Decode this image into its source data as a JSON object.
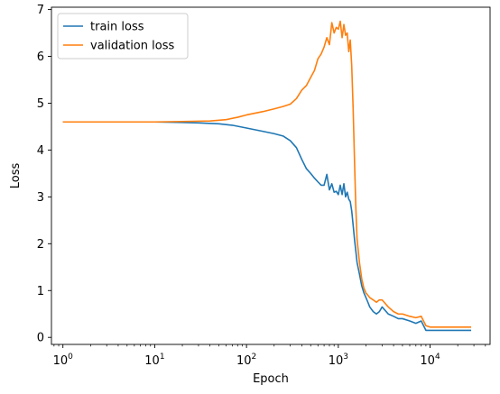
{
  "chart_data": {
    "type": "line",
    "xlabel": "Epoch",
    "ylabel": "Loss",
    "xscale": "log",
    "xlim": [
      0.75,
      45000
    ],
    "ylim": [
      -0.15,
      7.05
    ],
    "grid": false,
    "legend_position": "top-left",
    "x_ticks": [
      {
        "value": 1,
        "base": "10",
        "exp": "0"
      },
      {
        "value": 10,
        "base": "10",
        "exp": "1"
      },
      {
        "value": 100,
        "base": "10",
        "exp": "2"
      },
      {
        "value": 1000,
        "base": "10",
        "exp": "3"
      },
      {
        "value": 10000,
        "base": "10",
        "exp": "4"
      }
    ],
    "y_ticks": [
      0,
      1,
      2,
      3,
      4,
      5,
      6,
      7
    ],
    "series": [
      {
        "name": "train loss",
        "color": "#1f77b4",
        "x": [
          1,
          2,
          5,
          10,
          20,
          30,
          50,
          70,
          100,
          150,
          200,
          250,
          300,
          350,
          400,
          450,
          500,
          550,
          600,
          650,
          700,
          750,
          800,
          850,
          900,
          950,
          1000,
          1050,
          1100,
          1150,
          1200,
          1250,
          1300,
          1350,
          1400,
          1450,
          1500,
          1550,
          1600,
          1700,
          1800,
          1900,
          2000,
          2100,
          2200,
          2400,
          2600,
          2800,
          3000,
          3500,
          4000,
          4500,
          5000,
          6000,
          7000,
          8000,
          9000,
          10000,
          15000,
          20000,
          28000
        ],
        "y": [
          4.6,
          4.6,
          4.6,
          4.6,
          4.59,
          4.58,
          4.56,
          4.53,
          4.47,
          4.4,
          4.35,
          4.3,
          4.2,
          4.05,
          3.8,
          3.6,
          3.5,
          3.4,
          3.32,
          3.25,
          3.25,
          3.48,
          3.15,
          3.28,
          3.1,
          3.12,
          3.05,
          3.25,
          3.05,
          3.28,
          3.0,
          3.1,
          2.95,
          2.9,
          2.7,
          2.4,
          2.1,
          1.85,
          1.6,
          1.35,
          1.1,
          0.95,
          0.85,
          0.75,
          0.65,
          0.55,
          0.5,
          0.55,
          0.65,
          0.5,
          0.45,
          0.4,
          0.4,
          0.35,
          0.3,
          0.35,
          0.15,
          0.15,
          0.15,
          0.15,
          0.15
        ]
      },
      {
        "name": "validation loss",
        "color": "#ff7f0e",
        "x": [
          1,
          2,
          5,
          10,
          20,
          40,
          60,
          80,
          100,
          150,
          200,
          250,
          300,
          350,
          400,
          450,
          500,
          550,
          600,
          650,
          700,
          750,
          800,
          850,
          900,
          950,
          1000,
          1050,
          1100,
          1150,
          1200,
          1250,
          1300,
          1350,
          1400,
          1450,
          1500,
          1550,
          1600,
          1700,
          1800,
          1900,
          2000,
          2100,
          2200,
          2400,
          2600,
          2800,
          3000,
          3500,
          4000,
          4500,
          5000,
          6000,
          7000,
          8000,
          9000,
          10000,
          15000,
          20000,
          28000
        ],
        "y": [
          4.6,
          4.6,
          4.6,
          4.6,
          4.61,
          4.62,
          4.65,
          4.7,
          4.75,
          4.82,
          4.88,
          4.93,
          4.98,
          5.1,
          5.28,
          5.38,
          5.55,
          5.7,
          5.95,
          6.05,
          6.2,
          6.4,
          6.25,
          6.72,
          6.5,
          6.62,
          6.58,
          6.75,
          6.4,
          6.68,
          6.45,
          6.5,
          6.1,
          6.35,
          5.8,
          4.9,
          3.8,
          2.8,
          2.1,
          1.6,
          1.25,
          1.05,
          0.95,
          0.9,
          0.85,
          0.8,
          0.75,
          0.8,
          0.8,
          0.65,
          0.55,
          0.5,
          0.5,
          0.45,
          0.42,
          0.45,
          0.25,
          0.22,
          0.22,
          0.22,
          0.22
        ]
      }
    ]
  }
}
